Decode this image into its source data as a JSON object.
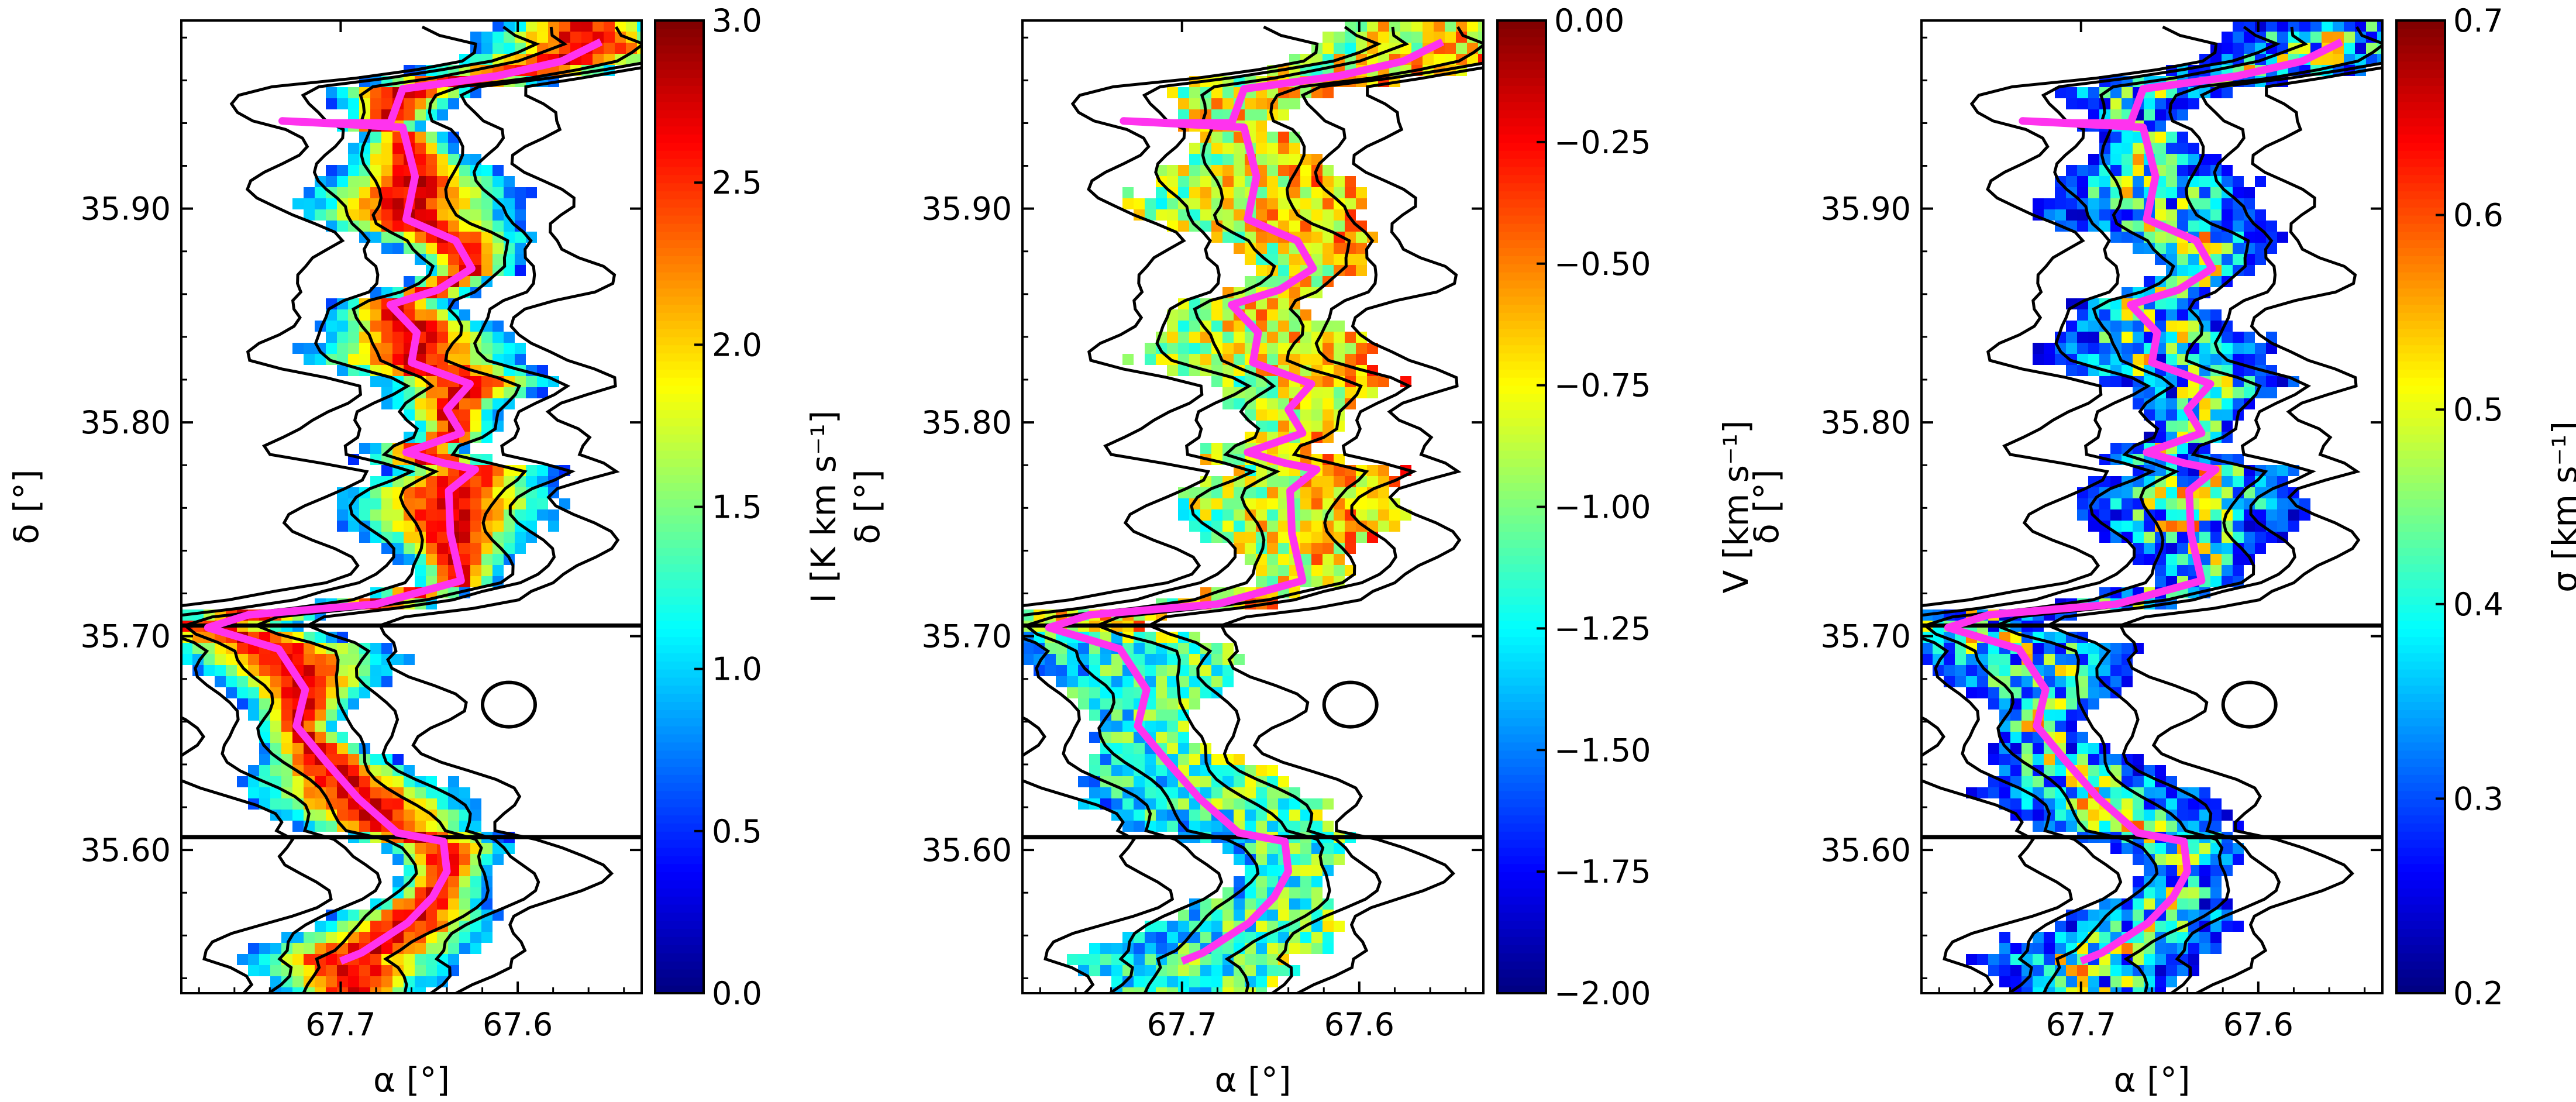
{
  "colors": {
    "filament_spine": "#ff33ee",
    "contour": "#000000",
    "divider_line": "#000000",
    "colormap": [
      "#00007f",
      "#0000ff",
      "#007fff",
      "#00ffff",
      "#7fff7f",
      "#ffff00",
      "#ff7f00",
      "#ff0000",
      "#7f0000"
    ]
  },
  "chart_data": [
    {
      "type": "heatmap",
      "panel": "intensity",
      "xlabel": "α [°]",
      "ylabel": "δ [°]",
      "xlim": [
        67.79,
        67.53
      ],
      "ylim": [
        35.533,
        35.988
      ],
      "x_ticks": [
        "67.7",
        "67.6"
      ],
      "y_ticks": [
        "35.90",
        "35.80",
        "35.70",
        "35.60"
      ],
      "colorbar_label": "I [K km s⁻¹]",
      "colorbar_range": [
        0.0,
        3.0
      ],
      "colorbar_ticks": [
        "0.0",
        "0.5",
        "1.0",
        "1.5",
        "2.0",
        "2.5",
        "3.0"
      ],
      "horizontal_lines_dec": [
        35.705,
        35.606
      ],
      "grid": false
    },
    {
      "type": "heatmap",
      "panel": "velocity",
      "xlabel": "α [°]",
      "ylabel": "δ [°]",
      "xlim": [
        67.79,
        67.53
      ],
      "ylim": [
        35.533,
        35.988
      ],
      "x_ticks": [
        "67.7",
        "67.6"
      ],
      "y_ticks": [
        "35.90",
        "35.80",
        "35.70",
        "35.60"
      ],
      "colorbar_label": "V [km s⁻¹]",
      "colorbar_range": [
        -2.0,
        0.0
      ],
      "colorbar_ticks": [
        "−2.00",
        "−1.75",
        "−1.50",
        "−1.25",
        "−1.00",
        "−0.75",
        "−0.50",
        "−0.25",
        "0.00"
      ],
      "horizontal_lines_dec": [
        35.705,
        35.606
      ],
      "grid": false
    },
    {
      "type": "heatmap",
      "panel": "dispersion",
      "xlabel": "α [°]",
      "ylabel": "δ [°]",
      "xlim": [
        67.79,
        67.53
      ],
      "ylim": [
        35.533,
        35.988
      ],
      "x_ticks": [
        "67.7",
        "67.6"
      ],
      "y_ticks": [
        "35.90",
        "35.80",
        "35.70",
        "35.60"
      ],
      "colorbar_label": "σ [km s⁻¹]",
      "colorbar_range": [
        0.2,
        0.7
      ],
      "colorbar_ticks": [
        "0.2",
        "0.3",
        "0.4",
        "0.5",
        "0.6",
        "0.7"
      ],
      "horizontal_lines_dec": [
        35.705,
        35.606
      ],
      "grid": false
    }
  ],
  "spine_ra_dec": [
    [
      67.553,
      35.978
    ],
    [
      67.575,
      35.969
    ],
    [
      67.612,
      35.962
    ],
    [
      67.665,
      35.956
    ],
    [
      67.672,
      35.94
    ],
    [
      67.705,
      35.94
    ],
    [
      67.733,
      35.941
    ],
    [
      67.665,
      35.938
    ],
    [
      67.658,
      35.915
    ],
    [
      67.663,
      35.895
    ],
    [
      67.635,
      35.885
    ],
    [
      67.626,
      35.872
    ],
    [
      67.645,
      35.862
    ],
    [
      67.672,
      35.855
    ],
    [
      67.657,
      35.842
    ],
    [
      67.66,
      35.828
    ],
    [
      67.627,
      35.818
    ],
    [
      67.64,
      35.806
    ],
    [
      67.632,
      35.795
    ],
    [
      67.663,
      35.786
    ],
    [
      67.642,
      35.781
    ],
    [
      67.624,
      35.778
    ],
    [
      67.639,
      35.768
    ],
    [
      67.638,
      35.748
    ],
    [
      67.632,
      35.726
    ],
    [
      67.68,
      35.715
    ],
    [
      67.752,
      35.71
    ],
    [
      67.775,
      35.704
    ],
    [
      67.735,
      35.694
    ],
    [
      67.72,
      35.675
    ],
    [
      67.725,
      35.658
    ],
    [
      67.708,
      35.641
    ],
    [
      67.69,
      35.624
    ],
    [
      67.668,
      35.608
    ],
    [
      67.642,
      35.604
    ],
    [
      67.64,
      35.59
    ],
    [
      67.648,
      35.578
    ],
    [
      67.662,
      35.566
    ],
    [
      67.688,
      35.552
    ],
    [
      67.7,
      35.548
    ]
  ]
}
